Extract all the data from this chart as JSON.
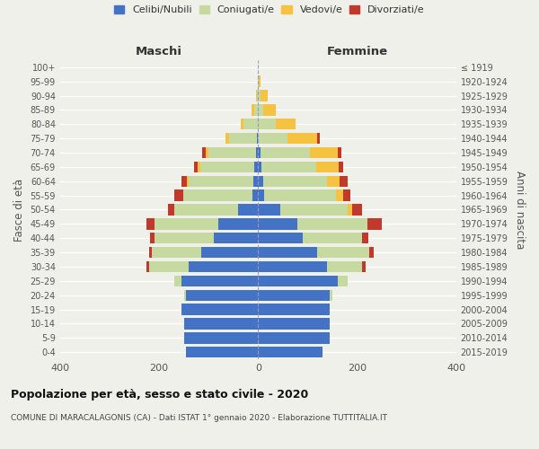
{
  "age_groups": [
    "0-4",
    "5-9",
    "10-14",
    "15-19",
    "20-24",
    "25-29",
    "30-34",
    "35-39",
    "40-44",
    "45-49",
    "50-54",
    "55-59",
    "60-64",
    "65-69",
    "70-74",
    "75-79",
    "80-84",
    "85-89",
    "90-94",
    "95-99",
    "100+"
  ],
  "birth_years": [
    "2015-2019",
    "2010-2014",
    "2005-2009",
    "2000-2004",
    "1995-1999",
    "1990-1994",
    "1985-1989",
    "1980-1984",
    "1975-1979",
    "1970-1974",
    "1965-1969",
    "1960-1964",
    "1955-1959",
    "1950-1954",
    "1945-1949",
    "1940-1944",
    "1935-1939",
    "1930-1934",
    "1925-1929",
    "1920-1924",
    "≤ 1919"
  ],
  "maschi_celibi": [
    145,
    150,
    150,
    155,
    145,
    155,
    140,
    115,
    90,
    80,
    40,
    12,
    10,
    7,
    5,
    3,
    0,
    0,
    0,
    0,
    0
  ],
  "maschi_coniugati": [
    0,
    0,
    0,
    0,
    5,
    15,
    80,
    100,
    120,
    130,
    130,
    140,
    130,
    110,
    95,
    55,
    30,
    8,
    3,
    1,
    0
  ],
  "maschi_vedovi": [
    0,
    0,
    0,
    0,
    0,
    0,
    0,
    0,
    0,
    0,
    0,
    0,
    3,
    5,
    5,
    8,
    5,
    5,
    2,
    0,
    0
  ],
  "maschi_divorziati": [
    0,
    0,
    0,
    0,
    0,
    0,
    5,
    5,
    8,
    15,
    12,
    18,
    12,
    8,
    8,
    0,
    0,
    0,
    0,
    0,
    0
  ],
  "femmine_celibi": [
    130,
    145,
    145,
    145,
    145,
    160,
    140,
    120,
    90,
    80,
    45,
    12,
    10,
    7,
    5,
    0,
    0,
    0,
    0,
    0,
    0
  ],
  "femmine_coniugati": [
    0,
    0,
    0,
    0,
    5,
    20,
    70,
    105,
    120,
    140,
    135,
    145,
    130,
    110,
    100,
    60,
    35,
    10,
    5,
    2,
    0
  ],
  "femmine_vedovi": [
    0,
    0,
    0,
    0,
    0,
    0,
    0,
    0,
    0,
    0,
    10,
    15,
    25,
    45,
    55,
    60,
    40,
    25,
    15,
    3,
    0
  ],
  "femmine_divorziati": [
    0,
    0,
    0,
    0,
    0,
    0,
    8,
    8,
    12,
    30,
    20,
    15,
    15,
    10,
    8,
    5,
    0,
    0,
    0,
    0,
    0
  ],
  "colors": {
    "celibi": "#4472c4",
    "coniugati": "#c5d9a0",
    "vedovi": "#f5c242",
    "divorziati": "#c0392b"
  },
  "legend_labels": [
    "Celibi/Nubili",
    "Coniugati/e",
    "Vedovi/e",
    "Divorziati/e"
  ],
  "xlabel_left": "Maschi",
  "xlabel_right": "Femmine",
  "ylabel_left": "Fasce di età",
  "ylabel_right": "Anni di nascita",
  "title_main": "Popolazione per età, sesso e stato civile - 2020",
  "title_sub": "COMUNE DI MARACALAGONIS (CA) - Dati ISTAT 1° gennaio 2020 - Elaborazione TUTTITALIA.IT",
  "xlim": 400,
  "background_color": "#f0f0eb"
}
